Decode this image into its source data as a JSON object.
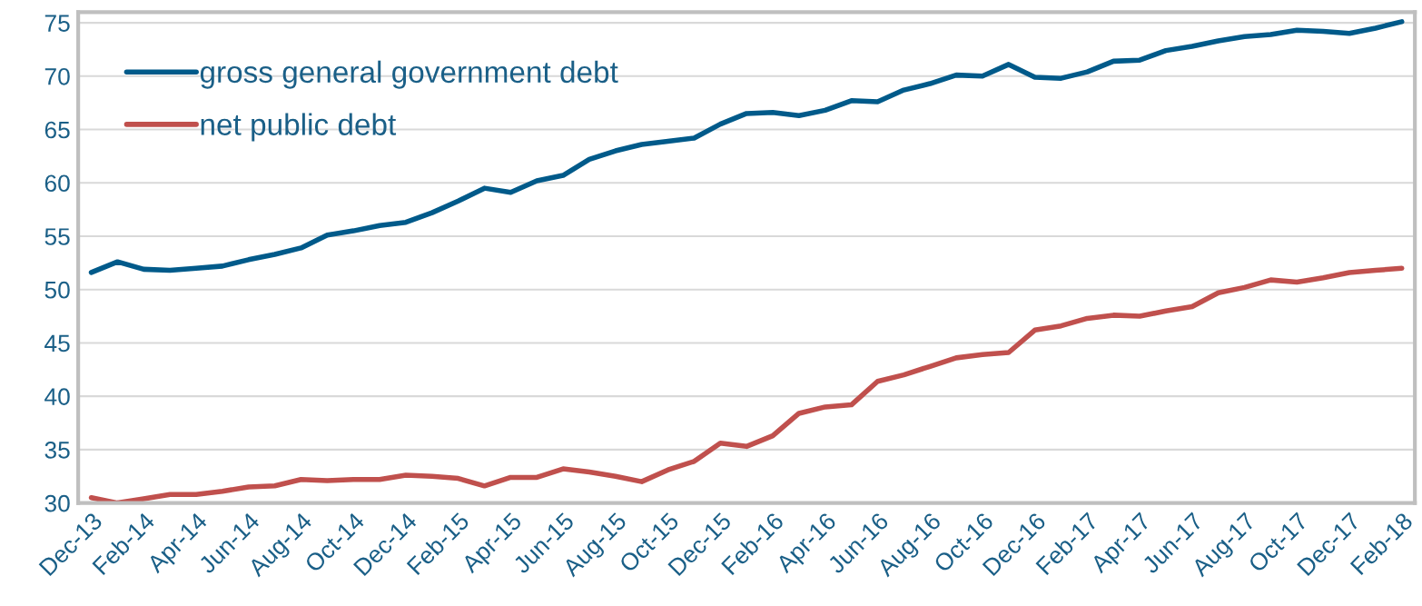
{
  "chart_data": {
    "type": "line",
    "categories": [
      "Dec-13",
      null,
      "Feb-14",
      null,
      "Apr-14",
      null,
      "Jun-14",
      null,
      "Aug-14",
      null,
      "Oct-14",
      null,
      "Dec-14",
      null,
      "Feb-15",
      null,
      "Apr-15",
      null,
      "Jun-15",
      null,
      "Aug-15",
      null,
      "Oct-15",
      null,
      "Dec-15",
      null,
      "Feb-16",
      null,
      "Apr-16",
      null,
      "Jun-16",
      null,
      "Aug-16",
      null,
      "Oct-16",
      null,
      "Dec-16",
      null,
      "Feb-17",
      null,
      "Apr-17",
      null,
      "Jun-17",
      null,
      "Aug-17",
      null,
      "Oct-17",
      null,
      "Dec-17",
      null,
      "Feb-18"
    ],
    "series": [
      {
        "name": "gross general government debt",
        "color": "#005a8a",
        "values": [
          51.6,
          52.6,
          51.9,
          51.8,
          52.0,
          52.2,
          52.8,
          53.3,
          53.9,
          55.1,
          55.5,
          56.0,
          56.3,
          57.2,
          58.3,
          59.5,
          59.1,
          60.2,
          60.7,
          62.2,
          63.0,
          63.6,
          63.9,
          64.2,
          65.5,
          66.5,
          66.6,
          66.3,
          66.8,
          67.7,
          67.6,
          68.7,
          69.3,
          70.1,
          70.0,
          71.1,
          69.9,
          69.8,
          70.4,
          71.4,
          71.5,
          72.4,
          72.8,
          73.3,
          73.7,
          73.9,
          74.3,
          74.2,
          74.0,
          74.5,
          75.1
        ]
      },
      {
        "name": "net public debt",
        "color": "#c0504d",
        "values": [
          30.5,
          30.0,
          30.4,
          30.8,
          30.8,
          31.1,
          31.5,
          31.6,
          32.2,
          32.1,
          32.2,
          32.2,
          32.6,
          32.5,
          32.3,
          31.6,
          32.4,
          32.4,
          33.2,
          32.9,
          32.5,
          32.0,
          33.1,
          33.9,
          35.6,
          35.3,
          36.3,
          38.4,
          39.0,
          39.2,
          41.4,
          42.0,
          42.8,
          43.6,
          43.9,
          44.1,
          46.2,
          46.6,
          47.3,
          47.6,
          47.5,
          48.0,
          48.4,
          49.7,
          50.2,
          50.9,
          50.7,
          51.1,
          51.6,
          51.8,
          52.0
        ]
      }
    ],
    "ylim": [
      30,
      76
    ],
    "yticks": [
      30,
      35,
      40,
      45,
      50,
      55,
      60,
      65,
      70,
      75
    ],
    "grid": "y",
    "legend": "top left",
    "marker": "none",
    "line_style": "solid"
  }
}
